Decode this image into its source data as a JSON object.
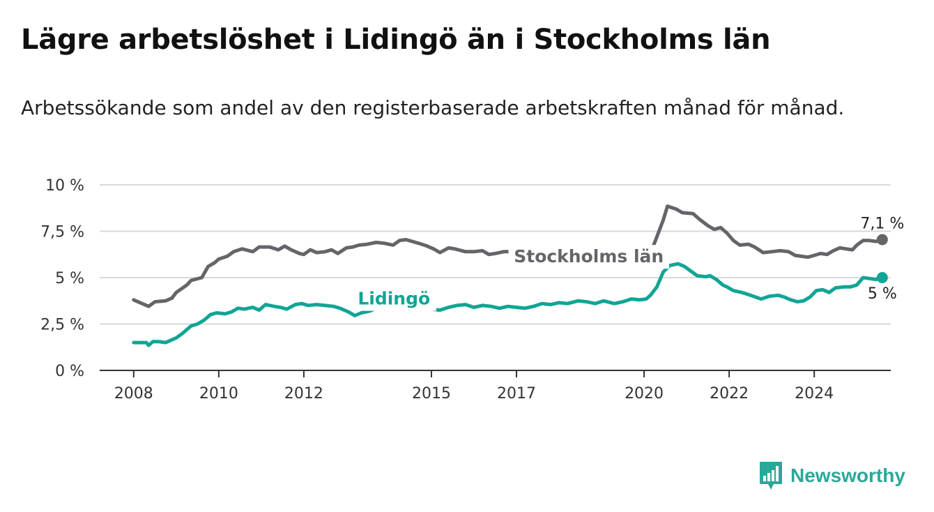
{
  "title": "Lägre arbetslöshet i Lidingö än i Stockholms län",
  "subtitle": "Arbetssökande som andel av den registerbaserade arbetskraften månad för månad.",
  "brand": {
    "name": "Newsworthy",
    "icon": "bar-chart-logo-icon",
    "color": "#2aa89a"
  },
  "chart_data": {
    "type": "line",
    "xlim": [
      2007.2,
      2025.8
    ],
    "ylim": [
      0,
      10
    ],
    "yticks": [
      {
        "v": 0,
        "label": "0 %"
      },
      {
        "v": 2.5,
        "label": "2,5 %"
      },
      {
        "v": 5,
        "label": "5 %"
      },
      {
        "v": 7.5,
        "label": "7,5 %"
      },
      {
        "v": 10,
        "label": "10 %"
      }
    ],
    "xticks": [
      {
        "v": 2008,
        "label": "2008"
      },
      {
        "v": 2010,
        "label": "2010"
      },
      {
        "v": 2012,
        "label": "2012"
      },
      {
        "v": 2015,
        "label": "2015"
      },
      {
        "v": 2017,
        "label": "2017"
      },
      {
        "v": 2020,
        "label": "2020"
      },
      {
        "v": 2022,
        "label": "2022"
      },
      {
        "v": 2024,
        "label": "2024"
      }
    ],
    "grid": true,
    "series": [
      {
        "name": "Stockholms län",
        "color": "#666469",
        "end_label": "7,1 %",
        "points": [
          [
            2008.0,
            3.8
          ],
          [
            2008.15,
            3.65
          ],
          [
            2008.35,
            3.45
          ],
          [
            2008.5,
            3.7
          ],
          [
            2008.75,
            3.75
          ],
          [
            2008.9,
            3.9
          ],
          [
            2009.0,
            4.2
          ],
          [
            2009.25,
            4.6
          ],
          [
            2009.35,
            4.85
          ],
          [
            2009.6,
            5.0
          ],
          [
            2009.75,
            5.6
          ],
          [
            2009.9,
            5.8
          ],
          [
            2010.0,
            6.0
          ],
          [
            2010.2,
            6.15
          ],
          [
            2010.35,
            6.4
          ],
          [
            2010.55,
            6.55
          ],
          [
            2010.8,
            6.4
          ],
          [
            2010.95,
            6.65
          ],
          [
            2011.2,
            6.65
          ],
          [
            2011.4,
            6.5
          ],
          [
            2011.55,
            6.7
          ],
          [
            2011.7,
            6.5
          ],
          [
            2011.9,
            6.3
          ],
          [
            2012.0,
            6.25
          ],
          [
            2012.15,
            6.5
          ],
          [
            2012.3,
            6.35
          ],
          [
            2012.5,
            6.4
          ],
          [
            2012.65,
            6.5
          ],
          [
            2012.8,
            6.3
          ],
          [
            2013.0,
            6.6
          ],
          [
            2013.15,
            6.65
          ],
          [
            2013.3,
            6.75
          ],
          [
            2013.5,
            6.8
          ],
          [
            2013.7,
            6.9
          ],
          [
            2013.9,
            6.85
          ],
          [
            2014.1,
            6.75
          ],
          [
            2014.25,
            7.0
          ],
          [
            2014.4,
            7.05
          ],
          [
            2014.55,
            6.95
          ],
          [
            2014.7,
            6.85
          ],
          [
            2014.9,
            6.7
          ],
          [
            2015.05,
            6.55
          ],
          [
            2015.2,
            6.35
          ],
          [
            2015.4,
            6.6
          ],
          [
            2015.55,
            6.55
          ],
          [
            2015.8,
            6.4
          ],
          [
            2016.0,
            6.4
          ],
          [
            2016.2,
            6.45
          ],
          [
            2016.35,
            6.25
          ],
          [
            2016.5,
            6.3
          ],
          [
            2016.7,
            6.4
          ],
          [
            2016.9,
            6.4
          ],
          [
            2017.1,
            6.25
          ],
          [
            2017.3,
            6.1
          ],
          [
            2017.55,
            6.05
          ],
          [
            2017.75,
            6.1
          ],
          [
            2017.95,
            6.1
          ],
          [
            2018.15,
            6.0
          ],
          [
            2018.3,
            6.05
          ],
          [
            2018.45,
            5.95
          ],
          [
            2018.6,
            6.15
          ],
          [
            2018.8,
            6.0
          ],
          [
            2019.0,
            6.0
          ],
          [
            2019.3,
            5.95
          ],
          [
            2019.6,
            6.05
          ],
          [
            2019.85,
            6.1
          ],
          [
            2020.0,
            6.2
          ],
          [
            2020.15,
            6.3
          ],
          [
            2020.3,
            7.2
          ],
          [
            2020.45,
            8.1
          ],
          [
            2020.55,
            8.85
          ],
          [
            2020.75,
            8.7
          ],
          [
            2020.9,
            8.5
          ],
          [
            2021.15,
            8.45
          ],
          [
            2021.3,
            8.15
          ],
          [
            2021.5,
            7.8
          ],
          [
            2021.65,
            7.6
          ],
          [
            2021.8,
            7.7
          ],
          [
            2021.95,
            7.4
          ],
          [
            2022.1,
            7.0
          ],
          [
            2022.25,
            6.75
          ],
          [
            2022.45,
            6.8
          ],
          [
            2022.6,
            6.65
          ],
          [
            2022.8,
            6.35
          ],
          [
            2023.0,
            6.4
          ],
          [
            2023.2,
            6.45
          ],
          [
            2023.4,
            6.4
          ],
          [
            2023.55,
            6.2
          ],
          [
            2023.7,
            6.15
          ],
          [
            2023.85,
            6.1
          ],
          [
            2024.0,
            6.2
          ],
          [
            2024.15,
            6.3
          ],
          [
            2024.3,
            6.25
          ],
          [
            2024.45,
            6.45
          ],
          [
            2024.6,
            6.6
          ],
          [
            2024.75,
            6.55
          ],
          [
            2024.9,
            6.5
          ],
          [
            2025.0,
            6.75
          ],
          [
            2025.15,
            7.0
          ],
          [
            2025.3,
            7.0
          ],
          [
            2025.45,
            6.95
          ],
          [
            2025.6,
            7.05
          ]
        ]
      },
      {
        "name": "Lidingö",
        "color": "#10a594",
        "end_label": "5 %",
        "points": [
          [
            2008.0,
            1.5
          ],
          [
            2008.15,
            1.5
          ],
          [
            2008.3,
            1.5
          ],
          [
            2008.35,
            1.35
          ],
          [
            2008.45,
            1.55
          ],
          [
            2008.6,
            1.55
          ],
          [
            2008.75,
            1.5
          ],
          [
            2008.9,
            1.65
          ],
          [
            2009.0,
            1.75
          ],
          [
            2009.15,
            2.0
          ],
          [
            2009.35,
            2.4
          ],
          [
            2009.5,
            2.5
          ],
          [
            2009.65,
            2.7
          ],
          [
            2009.8,
            3.0
          ],
          [
            2009.95,
            3.1
          ],
          [
            2010.15,
            3.05
          ],
          [
            2010.3,
            3.15
          ],
          [
            2010.45,
            3.35
          ],
          [
            2010.6,
            3.3
          ],
          [
            2010.8,
            3.4
          ],
          [
            2010.95,
            3.25
          ],
          [
            2011.1,
            3.55
          ],
          [
            2011.3,
            3.45
          ],
          [
            2011.45,
            3.4
          ],
          [
            2011.6,
            3.3
          ],
          [
            2011.8,
            3.55
          ],
          [
            2011.95,
            3.6
          ],
          [
            2012.1,
            3.5
          ],
          [
            2012.3,
            3.55
          ],
          [
            2012.5,
            3.5
          ],
          [
            2012.7,
            3.45
          ],
          [
            2012.85,
            3.35
          ],
          [
            2013.05,
            3.15
          ],
          [
            2013.2,
            2.95
          ],
          [
            2013.35,
            3.1
          ],
          [
            2013.55,
            3.2
          ],
          [
            2013.7,
            3.35
          ],
          [
            2013.9,
            3.3
          ],
          [
            2014.05,
            3.4
          ],
          [
            2014.2,
            3.35
          ],
          [
            2014.4,
            3.55
          ],
          [
            2014.6,
            3.35
          ],
          [
            2014.8,
            3.45
          ],
          [
            2015.0,
            3.3
          ],
          [
            2015.2,
            3.25
          ],
          [
            2015.4,
            3.4
          ],
          [
            2015.6,
            3.5
          ],
          [
            2015.8,
            3.55
          ],
          [
            2016.0,
            3.4
          ],
          [
            2016.2,
            3.5
          ],
          [
            2016.4,
            3.45
          ],
          [
            2016.6,
            3.35
          ],
          [
            2016.8,
            3.45
          ],
          [
            2017.0,
            3.4
          ],
          [
            2017.2,
            3.35
          ],
          [
            2017.4,
            3.45
          ],
          [
            2017.6,
            3.6
          ],
          [
            2017.8,
            3.55
          ],
          [
            2018.0,
            3.65
          ],
          [
            2018.2,
            3.6
          ],
          [
            2018.45,
            3.75
          ],
          [
            2018.65,
            3.7
          ],
          [
            2018.85,
            3.6
          ],
          [
            2019.05,
            3.75
          ],
          [
            2019.3,
            3.6
          ],
          [
            2019.5,
            3.7
          ],
          [
            2019.7,
            3.85
          ],
          [
            2019.9,
            3.8
          ],
          [
            2020.05,
            3.85
          ],
          [
            2020.15,
            4.05
          ],
          [
            2020.3,
            4.5
          ],
          [
            2020.45,
            5.3
          ],
          [
            2020.6,
            5.65
          ],
          [
            2020.8,
            5.75
          ],
          [
            2020.95,
            5.6
          ],
          [
            2021.1,
            5.35
          ],
          [
            2021.25,
            5.1
          ],
          [
            2021.45,
            5.05
          ],
          [
            2021.55,
            5.1
          ],
          [
            2021.7,
            4.9
          ],
          [
            2021.85,
            4.6
          ],
          [
            2021.95,
            4.5
          ],
          [
            2022.1,
            4.3
          ],
          [
            2022.3,
            4.2
          ],
          [
            2022.5,
            4.05
          ],
          [
            2022.75,
            3.85
          ],
          [
            2022.95,
            4.0
          ],
          [
            2023.15,
            4.05
          ],
          [
            2023.3,
            3.95
          ],
          [
            2023.45,
            3.8
          ],
          [
            2023.6,
            3.7
          ],
          [
            2023.75,
            3.75
          ],
          [
            2023.9,
            3.95
          ],
          [
            2024.05,
            4.3
          ],
          [
            2024.2,
            4.35
          ],
          [
            2024.35,
            4.2
          ],
          [
            2024.5,
            4.45
          ],
          [
            2024.7,
            4.5
          ],
          [
            2024.85,
            4.5
          ],
          [
            2025.0,
            4.6
          ],
          [
            2025.15,
            5.0
          ],
          [
            2025.3,
            4.95
          ],
          [
            2025.45,
            4.9
          ],
          [
            2025.6,
            5.0
          ]
        ]
      }
    ],
    "inline_labels": [
      {
        "series": "Stockholms län",
        "anchor_x": 2018.7,
        "anchor_y": 5.82
      },
      {
        "series": "Lidingö",
        "anchor_x": 2014.12,
        "anchor_y": 3.55
      }
    ]
  }
}
